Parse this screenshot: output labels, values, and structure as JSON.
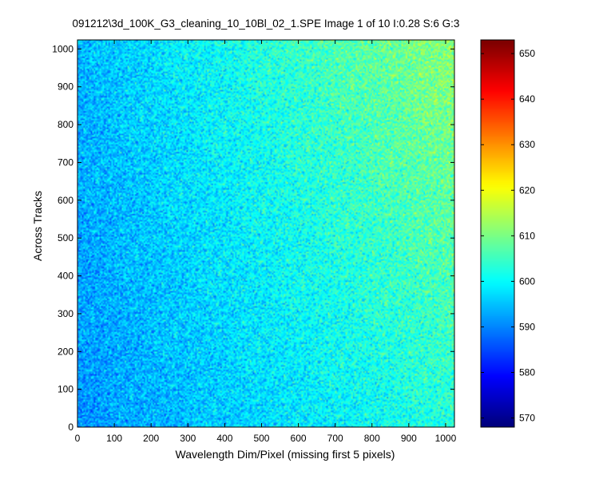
{
  "figure": {
    "background_color": "#ffffff",
    "colormap_name": "jet"
  },
  "chart_data": {
    "type": "heatmap",
    "title": "091212\\3d_100K_G3_cleaning_10_10Bl_02_1.SPE  Image 1 of 10  I:0.28  S:6  G:3",
    "xlabel": "Wavelength Dim/Pixel (missing first 5 pixels)",
    "ylabel": "Across Tracks",
    "xlim": [
      0,
      1024
    ],
    "ylim": [
      0,
      1024
    ],
    "x_ticks": [
      0,
      100,
      200,
      300,
      400,
      500,
      600,
      700,
      800,
      900,
      1000
    ],
    "y_ticks": [
      0,
      100,
      200,
      300,
      400,
      500,
      600,
      700,
      800,
      900,
      1000
    ],
    "x_tick_labels": [
      "0",
      "100",
      "200",
      "300",
      "400",
      "500",
      "600",
      "700",
      "800",
      "900",
      "1000"
    ],
    "y_tick_labels": [
      "0",
      "100",
      "200",
      "300",
      "400",
      "500",
      "600",
      "700",
      "800",
      "900",
      "1000"
    ],
    "colorbar": {
      "range": [
        568,
        653
      ],
      "ticks": [
        570,
        580,
        590,
        600,
        610,
        620,
        630,
        640,
        650
      ],
      "tick_labels": [
        "570",
        "580",
        "590",
        "600",
        "610",
        "620",
        "630",
        "640",
        "650"
      ]
    },
    "intensity_trend": {
      "description_values": {
        "bottom_left": 591,
        "top_left": 594,
        "bottom_right": 603,
        "top_right": 612,
        "noise_std": 4
      }
    },
    "grid": false,
    "colorbar_placement": "right"
  }
}
